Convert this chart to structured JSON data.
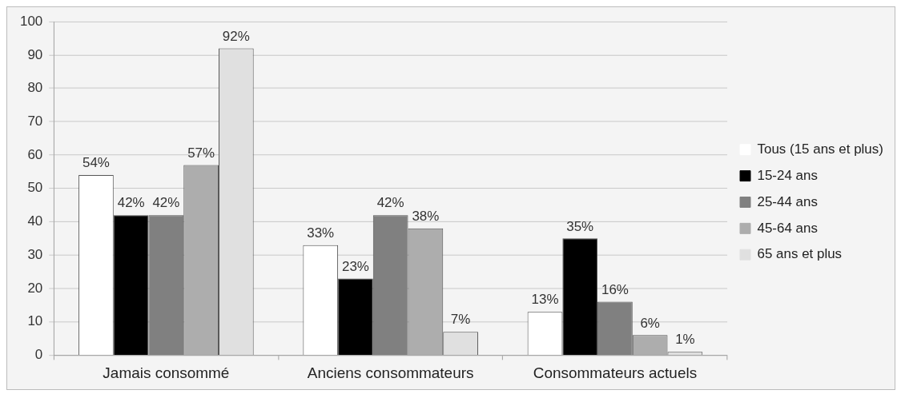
{
  "chart_data": {
    "type": "bar",
    "categories": [
      "Jamais consommé",
      "Anciens consommateurs",
      "Consommateurs actuels"
    ],
    "series": [
      {
        "name": "Tous (15 ans et plus)",
        "color": "#ffffff",
        "values": [
          54,
          33,
          13
        ],
        "value_labels": [
          "54%",
          "33%",
          "13%"
        ]
      },
      {
        "name": "15-24 ans",
        "color": "#000000",
        "values": [
          42,
          23,
          35
        ],
        "value_labels": [
          "42%",
          "23%",
          "35%"
        ]
      },
      {
        "name": "25-44 ans",
        "color": "#808080",
        "values": [
          42,
          42,
          16
        ],
        "value_labels": [
          "42%",
          "42%",
          "16%"
        ]
      },
      {
        "name": "45-64 ans",
        "color": "#adadad",
        "values": [
          57,
          38,
          6
        ],
        "value_labels": [
          "57%",
          "38%",
          "6%"
        ]
      },
      {
        "name": "65 ans et plus",
        "color": "#e0e0e0",
        "values": [
          92,
          7,
          1
        ],
        "value_labels": [
          "92%",
          "7%",
          "1%"
        ]
      }
    ],
    "ylim": [
      0,
      100
    ],
    "yticks": [
      0,
      10,
      20,
      30,
      40,
      50,
      60,
      70,
      80,
      90,
      100
    ],
    "grid": "y",
    "legend": "right"
  }
}
